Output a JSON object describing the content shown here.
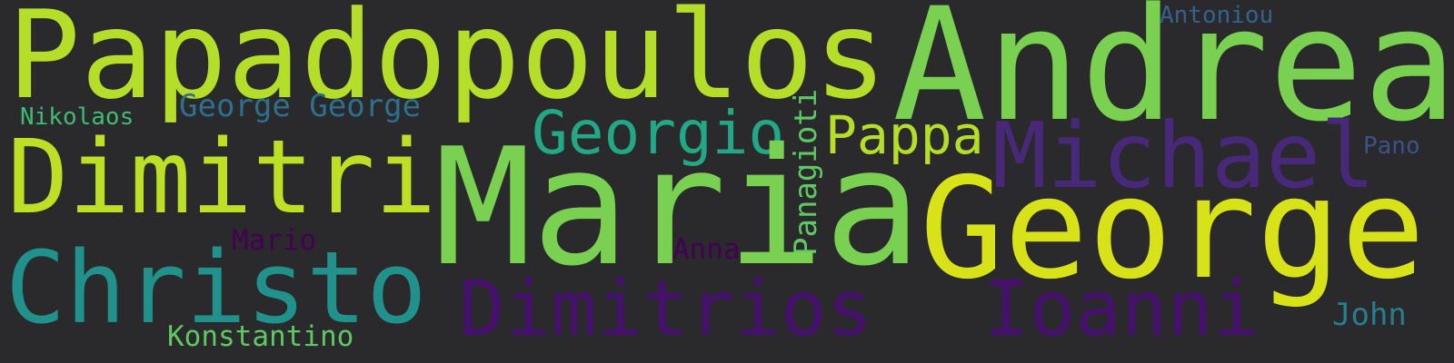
{
  "words": [
    {
      "text": "Papadopoulos",
      "color": "#b5de2b"
    },
    {
      "text": "Andrea",
      "color": "#7ad151"
    },
    {
      "text": "Antoniou",
      "color": "#33638d"
    },
    {
      "text": "Nikolaos",
      "color": "#3fbc73"
    },
    {
      "text": "George George",
      "color": "#2d708e"
    },
    {
      "text": "Georgio",
      "color": "#22a884"
    },
    {
      "text": "Pappa",
      "color": "#b5de2b"
    },
    {
      "text": "Panagioti",
      "color": "#5ec962"
    },
    {
      "text": "Michael",
      "color": "#482878"
    },
    {
      "text": "Pano",
      "color": "#3b528b"
    },
    {
      "text": "Dimitri",
      "color": "#bddf26"
    },
    {
      "text": "Maria",
      "color": "#7ad151"
    },
    {
      "text": "George",
      "color": "#d8e219"
    },
    {
      "text": "Mario",
      "color": "#440154"
    },
    {
      "text": "Anna",
      "color": "#440154"
    },
    {
      "text": "Christo",
      "color": "#21918c"
    },
    {
      "text": "Dimitrios",
      "color": "#46106d"
    },
    {
      "text": "Ioanni",
      "color": "#46106d"
    },
    {
      "text": "John",
      "color": "#287d8e"
    },
    {
      "text": "Konstantino",
      "color": "#5ec962"
    }
  ]
}
